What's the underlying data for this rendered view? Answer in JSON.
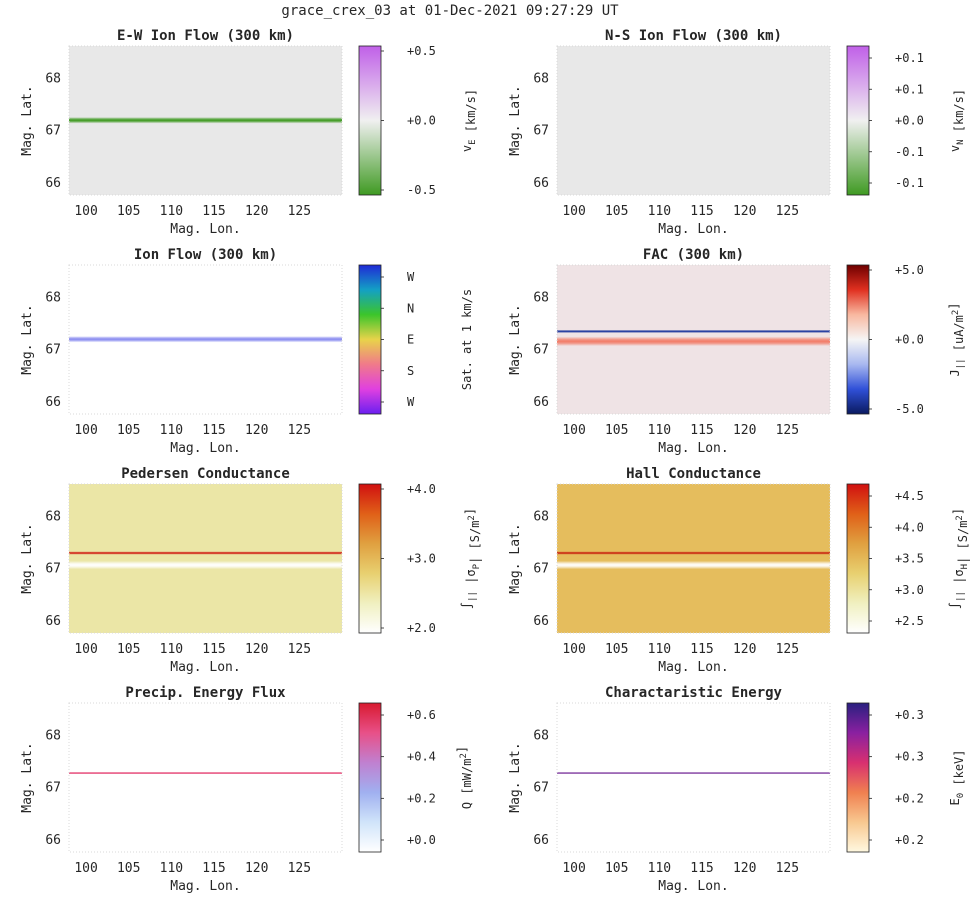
{
  "suptitle": "grace_crex_03 at 01-Dec-2021 09:27:29 UT",
  "colors": {
    "greenband": "#4a9e2e",
    "blueband": "#1a2fa8",
    "redband": "#d91a2a",
    "pedersen_bg": "#ebe6a3",
    "hall_bg": "#e6bd5c"
  },
  "chart_data": [
    {
      "type": "heatmap",
      "title": "E-W Ion Flow (300 km)",
      "xlabel": "Mag. Lon.",
      "ylabel": "Mag. Lat.",
      "xticks": [
        "100",
        "105",
        "110",
        "115",
        "120",
        "125"
      ],
      "yticks": [
        "66",
        "67",
        "68"
      ],
      "xlim": [
        98,
        130
      ],
      "ylim": [
        65.75,
        68.6
      ],
      "background": "#e8e8e8",
      "bands": [
        {
          "lat": 67.18,
          "width": 0.06,
          "color": "#3f9a22",
          "sign": "negative"
        }
      ],
      "colorbar": {
        "ticks": [
          "+0.5",
          "+0.0",
          "-0.5"
        ],
        "label": "v_E [km/s]",
        "colors": [
          "#c060e8",
          "#f0f0f0",
          "#3f9a22"
        ]
      }
    },
    {
      "type": "heatmap",
      "title": "N-S Ion Flow (300 km)",
      "xlabel": "Mag. Lon.",
      "ylabel": "Mag. Lat.",
      "xticks": [
        "100",
        "105",
        "110",
        "115",
        "120",
        "125"
      ],
      "yticks": [
        "66",
        "67",
        "68"
      ],
      "xlim": [
        98,
        130
      ],
      "ylim": [
        65.75,
        68.6
      ],
      "background": "#e8e8e8",
      "bands": [],
      "colorbar": {
        "ticks": [
          "+0.1",
          "+0.1",
          "+0.0",
          "-0.1",
          "-0.1"
        ],
        "label": "v_N [km/s]",
        "colors": [
          "#c060e8",
          "#f0f0f0",
          "#3f9a22"
        ]
      }
    },
    {
      "type": "heatmap",
      "title": "Ion Flow (300 km)",
      "xlabel": "Mag. Lon.",
      "ylabel": "Mag. Lat.",
      "xticks": [
        "100",
        "105",
        "110",
        "115",
        "120",
        "125"
      ],
      "yticks": [
        "66",
        "67",
        "68"
      ],
      "xlim": [
        98,
        130
      ],
      "ylim": [
        65.75,
        68.6
      ],
      "background": "#ffffff",
      "bands": [
        {
          "lat": 67.18,
          "width": 0.06,
          "color": "#8a8cf0",
          "direction": "W"
        }
      ],
      "colorbar": {
        "ticks": [
          "W",
          "N",
          "E",
          "S",
          "W"
        ],
        "label": "Sat. at 1 km/s",
        "colors": [
          "#1f2ad6",
          "#13a0c4",
          "#3cc52b",
          "#e8d34a",
          "#f07a8a",
          "#e040e0",
          "#6b1ff0"
        ]
      }
    },
    {
      "type": "heatmap",
      "title": "FAC (300 km)",
      "xlabel": "Mag. Lon.",
      "ylabel": "Mag. Lat.",
      "xticks": [
        "100",
        "105",
        "110",
        "115",
        "120",
        "125"
      ],
      "yticks": [
        "66",
        "67",
        "68"
      ],
      "xlim": [
        98,
        130
      ],
      "ylim": [
        65.75,
        68.6
      ],
      "background": "#efe3e5",
      "bands": [
        {
          "lat": 67.33,
          "width": 0.03,
          "color": "#15309a",
          "sign": "negative"
        },
        {
          "lat": 67.14,
          "width": 0.09,
          "color": "#f27c68",
          "sign": "positive"
        }
      ],
      "colorbar": {
        "ticks": [
          "+5.0",
          "+0.0",
          "-5.0"
        ],
        "label": "J_|| [uA/m^2]",
        "colors": [
          "#6e0000",
          "#e03020",
          "#f8b8a0",
          "#f5f5f5",
          "#a8b8f0",
          "#3050d8",
          "#0a1a60"
        ]
      }
    },
    {
      "type": "heatmap",
      "title": "Pedersen Conductance",
      "xlabel": "Mag. Lon.",
      "ylabel": "Mag. Lat.",
      "xticks": [
        "100",
        "105",
        "110",
        "115",
        "120",
        "125"
      ],
      "yticks": [
        "66",
        "67",
        "68"
      ],
      "xlim": [
        98,
        130
      ],
      "ylim": [
        65.75,
        68.6
      ],
      "background": "#ebe6a6",
      "bands": [
        {
          "lat": 67.28,
          "width": 0.03,
          "color": "#d01a10",
          "level": "high"
        },
        {
          "lat": 67.05,
          "width": 0.08,
          "color": "#ffffff",
          "level": "low"
        }
      ],
      "colorbar": {
        "ticks": [
          "+4.0",
          "+3.0",
          "+2.0"
        ],
        "label": "∫_|| |σ_P| [S/m^2]",
        "colors": [
          "#d01010",
          "#e06018",
          "#e0a040",
          "#e8d070",
          "#f0f0c0",
          "#ffffff"
        ]
      }
    },
    {
      "type": "heatmap",
      "title": "Hall Conductance",
      "xlabel": "Mag. Lon.",
      "ylabel": "Mag. Lat.",
      "xticks": [
        "100",
        "105",
        "110",
        "115",
        "120",
        "125"
      ],
      "yticks": [
        "66",
        "67",
        "68"
      ],
      "xlim": [
        98,
        130
      ],
      "ylim": [
        65.75,
        68.6
      ],
      "background": "#e5bd5d",
      "bands": [
        {
          "lat": 67.28,
          "width": 0.03,
          "color": "#c8200e",
          "level": "high"
        },
        {
          "lat": 67.05,
          "width": 0.08,
          "color": "#ffffff",
          "level": "low"
        }
      ],
      "colorbar": {
        "ticks": [
          "+4.5",
          "+4.0",
          "+3.5",
          "+3.0",
          "+2.5"
        ],
        "label": "∫_|| |σ_H| [S/m^2]",
        "colors": [
          "#d01010",
          "#e06018",
          "#e0a040",
          "#e8d070",
          "#f0f0c0",
          "#ffffff"
        ]
      }
    },
    {
      "type": "heatmap",
      "title": "Precip. Energy Flux",
      "xlabel": "Mag. Lon.",
      "ylabel": "Mag. Lat.",
      "xticks": [
        "100",
        "105",
        "110",
        "115",
        "120",
        "125"
      ],
      "yticks": [
        "66",
        "67",
        "68"
      ],
      "xlim": [
        98,
        130
      ],
      "ylim": [
        65.75,
        68.6
      ],
      "background": "#ffffff",
      "bands": [
        {
          "lat": 67.26,
          "width": 0.02,
          "color": "#e0205a",
          "level": "high"
        }
      ],
      "colorbar": {
        "ticks": [
          "+0.6",
          "+0.4",
          "+0.2",
          "+0.0"
        ],
        "label": "Q [mW/m^2]",
        "colors": [
          "#d81a30",
          "#e85088",
          "#c080d0",
          "#a0b0f0",
          "#d0e4fa",
          "#ffffff"
        ]
      }
    },
    {
      "type": "heatmap",
      "title": "Charactaristic Energy",
      "xlabel": "Mag. Lon.",
      "ylabel": "Mag. Lat.",
      "xticks": [
        "100",
        "105",
        "110",
        "115",
        "120",
        "125"
      ],
      "yticks": [
        "66",
        "67",
        "68"
      ],
      "xlim": [
        98,
        130
      ],
      "ylim": [
        65.75,
        68.6
      ],
      "background": "#ffffff",
      "bands": [
        {
          "lat": 67.26,
          "width": 0.02,
          "color": "#6a1a90",
          "level": "high"
        }
      ],
      "colorbar": {
        "ticks": [
          "+0.3",
          "+0.3",
          "+0.2",
          "+0.2"
        ],
        "label": "E_0 [keV]",
        "colors": [
          "#2a2080",
          "#8a20a0",
          "#d83070",
          "#f08050",
          "#f8c890",
          "#fff8e0"
        ]
      }
    }
  ]
}
